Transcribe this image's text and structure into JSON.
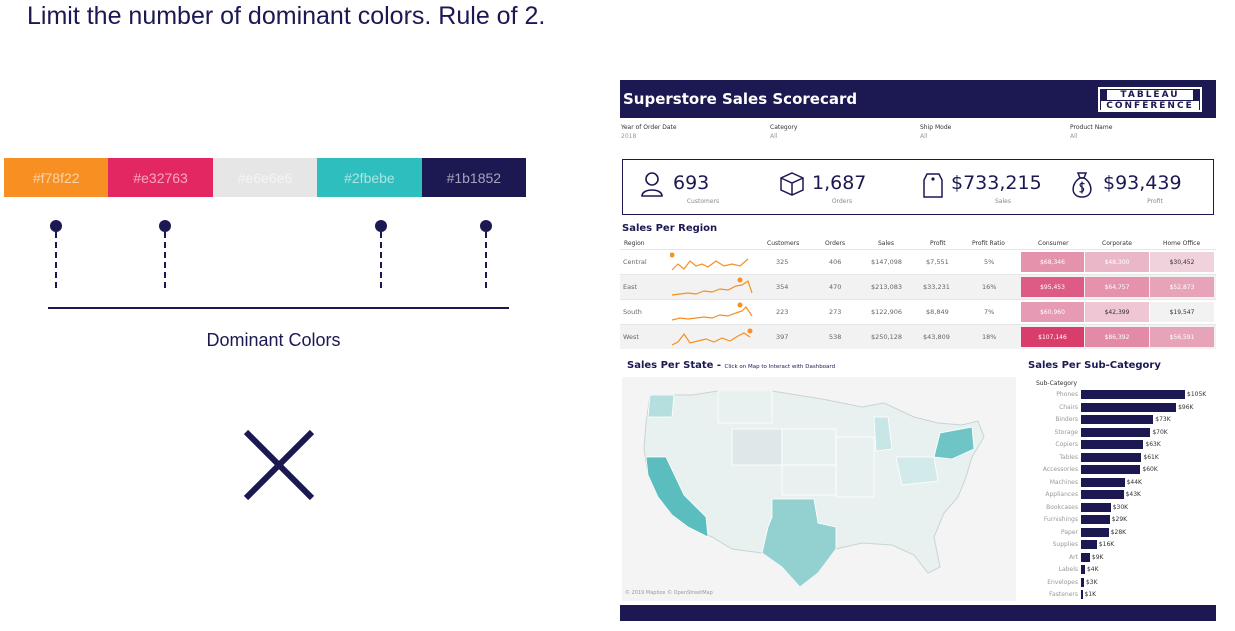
{
  "headline": "Limit the number of dominant colors. Rule of 2.",
  "swatches": [
    {
      "label": "#f78f22",
      "color": "#f78f22"
    },
    {
      "label": "#e32763",
      "color": "#e32763"
    },
    {
      "label": "#e6e6e6",
      "color": "#e6e6e6"
    },
    {
      "label": "#2fbebe",
      "color": "#2fbebe"
    },
    {
      "label": "#1b1852",
      "color": "#1b1852"
    }
  ],
  "dominant_label": "Dominant Colors",
  "icons": {
    "close": "close-x-icon"
  },
  "dashboard": {
    "title": "Superstore Sales Scorecard",
    "logo_line1": "TABLEAU",
    "logo_line2": "CONFERENCE",
    "filters": [
      {
        "label": "Year of Order Date",
        "value": "2018"
      },
      {
        "label": "Category",
        "value": "All"
      },
      {
        "label": "Ship Mode",
        "value": "All"
      },
      {
        "label": "Product Name",
        "value": "All"
      }
    ],
    "kpis": [
      {
        "value": "693",
        "label": "Customers",
        "icon": "person-icon"
      },
      {
        "value": "1,687",
        "label": "Orders",
        "icon": "box-icon"
      },
      {
        "value": "$733,215",
        "label": "Sales",
        "icon": "price-tag-icon"
      },
      {
        "value": "$93,439",
        "label": "Profit",
        "icon": "money-bag-icon"
      }
    ],
    "region_title": "Sales Per Region",
    "region_headers": [
      "Region",
      "Customers",
      "Orders",
      "Sales",
      "Profit",
      "Profit Ratio",
      "Consumer",
      "Corporate",
      "Home Office"
    ],
    "regions": [
      {
        "name": "Central",
        "customers": "325",
        "orders": "406",
        "sales": "$147,098",
        "profit": "$7,551",
        "ratio": "5%",
        "consumer": "$68,346",
        "corporate": "$48,300",
        "home": "$30,452"
      },
      {
        "name": "East",
        "customers": "354",
        "orders": "470",
        "sales": "$213,083",
        "profit": "$33,231",
        "ratio": "16%",
        "consumer": "$95,453",
        "corporate": "$64,757",
        "home": "$52,873"
      },
      {
        "name": "South",
        "customers": "223",
        "orders": "273",
        "sales": "$122,906",
        "profit": "$8,849",
        "ratio": "7%",
        "consumer": "$60,960",
        "corporate": "$42,399",
        "home": "$19,547"
      },
      {
        "name": "West",
        "customers": "397",
        "orders": "538",
        "sales": "$250,128",
        "profit": "$43,809",
        "ratio": "18%",
        "consumer": "$107,146",
        "corporate": "$86,392",
        "home": "$56,591"
      }
    ],
    "heat_colors": [
      [
        "#e592ad",
        "#eab7c8",
        "#efd2dc"
      ],
      [
        "#de5b85",
        "#e592ad",
        "#e7a4b9"
      ],
      [
        "#e79ab3",
        "#efc6d3",
        "#f2f2f2"
      ],
      [
        "#d93d6c",
        "#e38aa7",
        "#e7a4b9"
      ]
    ],
    "state_title": "Sales Per State - ",
    "state_subtitle": "Click on Map to Interact with Dashboard",
    "map_credit": "© 2019 Mapbox © OpenStreetMap",
    "subcat_title": "Sales Per Sub-Category",
    "subcat_header": "Sub-Category"
  },
  "chart_data": {
    "type": "bar",
    "title": "Sales Per Sub-Category",
    "categories": [
      "Phones",
      "Chairs",
      "Binders",
      "Storage",
      "Copiers",
      "Tables",
      "Accessories",
      "Machines",
      "Appliances",
      "Bookcases",
      "Furnishings",
      "Paper",
      "Supplies",
      "Art",
      "Labels",
      "Envelopes",
      "Fasteners"
    ],
    "values": [
      105,
      96,
      73,
      70,
      63,
      61,
      60,
      44,
      43,
      30,
      29,
      28,
      16,
      9,
      4,
      3,
      1
    ],
    "value_labels": [
      "$105K",
      "$96K",
      "$73K",
      "$70K",
      "$63K",
      "$61K",
      "$60K",
      "$44K",
      "$43K",
      "$30K",
      "$29K",
      "$28K",
      "$16K",
      "$9K",
      "$4K",
      "$3K",
      "$1K"
    ],
    "xlabel": "",
    "ylabel": "Sub-Category"
  }
}
